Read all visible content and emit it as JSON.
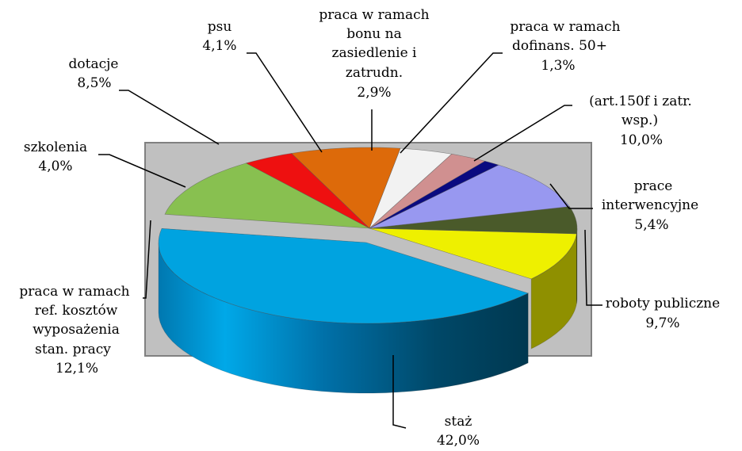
{
  "chart_data": {
    "type": "pie",
    "style": "3d-exploded",
    "title": "",
    "slices": [
      {
        "name": "staż",
        "value": 42.0,
        "label": "42,0%",
        "color": "#00a3e0"
      },
      {
        "name": "roboty publiczne",
        "value": 9.7,
        "label": "9,7%",
        "color": "#eef000"
      },
      {
        "name": "prace interwencyjne",
        "value": 5.4,
        "label": "5,4%",
        "color": "#4a5a2a"
      },
      {
        "name": "(art.150f i zatr. wsp.)",
        "value": 10.0,
        "label": "10,0%",
        "color": "#9898f0"
      },
      {
        "name": "praca w ramach dofinans. 50+",
        "value": 1.3,
        "label": "1,3%",
        "color": "#0a0a80"
      },
      {
        "name": "praca w ramach bonu na zasiedlenie i zatrudn.",
        "value": 2.9,
        "label": "2,9%",
        "color": "#d09090"
      },
      {
        "name": "psu",
        "value": 4.1,
        "label": "4,1%",
        "color": "#f2f2f2"
      },
      {
        "name": "dotacje",
        "value": 8.5,
        "label": "8,5%",
        "color": "#dd6a0a"
      },
      {
        "name": "szkolenia",
        "value": 4.0,
        "label": "4,0%",
        "color": "#ee1010"
      },
      {
        "name": "praca w ramach ref. kosztów wyposażenia stan. pracy",
        "value": 12.1,
        "label": "12,1%",
        "color": "#88c050"
      }
    ],
    "plot_area_color": "#c0c0c0"
  }
}
